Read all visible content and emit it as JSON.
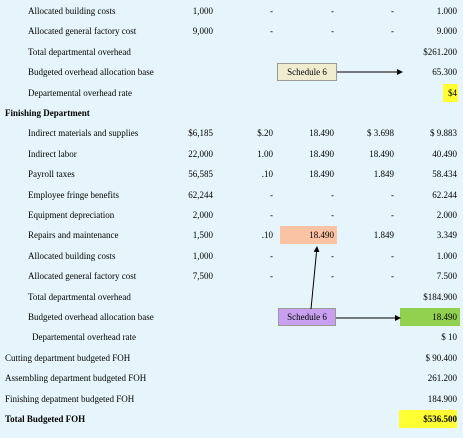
{
  "rows": [
    {
      "label": "Allocated building costs",
      "values": [
        "1,000",
        "-",
        "-",
        "-",
        "1.000"
      ]
    },
    {
      "label": "Allocated general factory cost",
      "values": [
        "9,000",
        "-",
        "-",
        "-",
        "9.000"
      ]
    },
    {
      "label": "Total departmental overhead",
      "values": [
        null,
        null,
        null,
        null,
        "$261.200"
      ]
    },
    {
      "label": "Budgeted overhead allocation base",
      "note": "Schedule 6",
      "values": [
        null,
        null,
        null,
        null,
        "65.300"
      ]
    },
    {
      "label": "Departemental overhead rate",
      "values": [
        null,
        null,
        null,
        null,
        "$4"
      ]
    },
    {
      "label": "Finishing Department",
      "values": [
        null,
        null,
        null,
        null,
        null
      ]
    },
    {
      "label": "Indirect materials and supplies",
      "values": [
        "$6,185",
        "$.20",
        "18.490",
        "$ 3.698",
        "$ 9.883"
      ]
    },
    {
      "label": "Indirect labor",
      "values": [
        "22,000",
        "1.00",
        "18.490",
        "18.490",
        "40.490"
      ]
    },
    {
      "label": "Payroll taxes",
      "values": [
        "56,585",
        ".10",
        "18.490",
        "1.849",
        "58.434"
      ]
    },
    {
      "label": "Employee fringe benefits",
      "values": [
        "62,244",
        "-",
        "-",
        "-",
        "62.244"
      ]
    },
    {
      "label": "Equipment depreciation",
      "values": [
        "2,000",
        "-",
        "-",
        "-",
        "2.000"
      ]
    },
    {
      "label": "Repairs and maintenance",
      "values": [
        "1,500",
        ".10",
        "18.490",
        "1.849",
        "3.349"
      ]
    },
    {
      "label": "Allocated building costs",
      "values": [
        "1,000",
        "-",
        "-",
        "-",
        "1.000"
      ]
    },
    {
      "label": "Allocated general factory cost",
      "values": [
        "7,500",
        "-",
        "-",
        "-",
        "7.500"
      ]
    },
    {
      "label": "Total departmental overhead",
      "values": [
        null,
        null,
        null,
        null,
        "$184.900"
      ]
    },
    {
      "label": "Budgeted overhead allocation base",
      "note": "Schedule 6",
      "values": [
        null,
        null,
        null,
        null,
        "18.490"
      ]
    },
    {
      "label": "Departemental overhead rate",
      "values": [
        null,
        null,
        null,
        null,
        "$ 10"
      ]
    },
    {
      "label": "Cutting department budgeted FOH",
      "values": [
        null,
        null,
        null,
        null,
        "$ 90.400"
      ]
    },
    {
      "label": "Assembling department budgeted FOH",
      "values": [
        null,
        null,
        null,
        null,
        "261.200"
      ]
    },
    {
      "label": "Finishing depatment budgeted FOH",
      "values": [
        null,
        null,
        null,
        null,
        "184.900"
      ]
    },
    {
      "label": "Total Budgeted FOH",
      "values": [
        null,
        null,
        null,
        null,
        "$536.500"
      ]
    }
  ]
}
